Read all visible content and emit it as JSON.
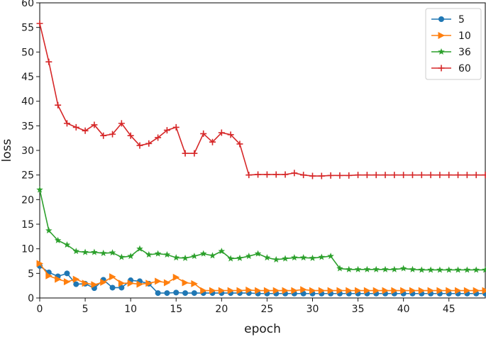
{
  "chart_data": {
    "type": "line",
    "title": "",
    "xlabel": "epoch",
    "ylabel": "loss",
    "xlim": [
      0,
      49
    ],
    "ylim": [
      0,
      60
    ],
    "xticks": [
      0,
      5,
      10,
      15,
      20,
      25,
      30,
      35,
      40,
      45
    ],
    "yticks": [
      0,
      5,
      10,
      15,
      20,
      25,
      30,
      35,
      40,
      45,
      50,
      55,
      60
    ],
    "grid": false,
    "legend_position": "top-right",
    "x": [
      0,
      1,
      2,
      3,
      4,
      5,
      6,
      7,
      8,
      9,
      10,
      11,
      12,
      13,
      14,
      15,
      16,
      17,
      18,
      19,
      20,
      21,
      22,
      23,
      24,
      25,
      26,
      27,
      28,
      29,
      30,
      31,
      32,
      33,
      34,
      35,
      36,
      37,
      38,
      39,
      40,
      41,
      42,
      43,
      44,
      45,
      46,
      47,
      48,
      49
    ],
    "series": [
      {
        "name": "5",
        "color": "#1f77b4",
        "marker": "circle",
        "values": [
          6.5,
          5.2,
          4.4,
          5.0,
          2.8,
          2.9,
          2.0,
          3.7,
          2.1,
          2.1,
          3.6,
          3.4,
          2.9,
          1.0,
          1.0,
          1.1,
          1.0,
          1.0,
          1.0,
          1.0,
          1.0,
          1.0,
          1.0,
          1.0,
          0.9,
          0.9,
          0.9,
          0.9,
          0.9,
          0.9,
          0.9,
          0.9,
          0.9,
          0.9,
          0.9,
          0.9,
          0.9,
          0.9,
          0.9,
          0.9,
          0.9,
          0.9,
          0.9,
          0.9,
          0.9,
          0.9,
          0.9,
          0.9,
          0.9,
          0.9
        ]
      },
      {
        "name": "10",
        "color": "#ff7f0e",
        "marker": "triangle-right",
        "values": [
          7.0,
          4.5,
          3.8,
          3.3,
          3.8,
          3.0,
          2.7,
          3.2,
          4.3,
          3.0,
          3.0,
          2.8,
          3.0,
          3.4,
          3.1,
          4.2,
          3.1,
          2.9,
          1.5,
          1.5,
          1.5,
          1.5,
          1.5,
          1.6,
          1.5,
          1.5,
          1.5,
          1.5,
          1.5,
          1.7,
          1.5,
          1.5,
          1.5,
          1.5,
          1.5,
          1.5,
          1.5,
          1.5,
          1.5,
          1.5,
          1.5,
          1.5,
          1.5,
          1.5,
          1.5,
          1.5,
          1.5,
          1.5,
          1.5,
          1.5
        ]
      },
      {
        "name": "36",
        "color": "#2ca02c",
        "marker": "star",
        "values": [
          22.0,
          13.7,
          11.7,
          10.8,
          9.5,
          9.3,
          9.3,
          9.1,
          9.2,
          8.3,
          8.5,
          10.0,
          8.8,
          9.0,
          8.8,
          8.2,
          8.1,
          8.5,
          9.0,
          8.6,
          9.5,
          8.0,
          8.1,
          8.5,
          9.0,
          8.2,
          7.8,
          8.0,
          8.2,
          8.2,
          8.1,
          8.3,
          8.5,
          6.0,
          5.8,
          5.8,
          5.8,
          5.8,
          5.8,
          5.8,
          6.0,
          5.8,
          5.7,
          5.7,
          5.7,
          5.7,
          5.7,
          5.7,
          5.7,
          5.7
        ]
      },
      {
        "name": "60",
        "color": "#d62728",
        "marker": "plus",
        "values": [
          55.8,
          48.0,
          39.2,
          35.5,
          34.7,
          34.0,
          35.2,
          33.0,
          33.3,
          35.5,
          33.0,
          31.0,
          31.4,
          32.6,
          34.1,
          34.7,
          29.4,
          29.4,
          33.4,
          31.7,
          33.6,
          33.2,
          31.3,
          25.0,
          25.1,
          25.1,
          25.1,
          25.1,
          25.4,
          25.0,
          24.8,
          24.8,
          24.9,
          24.9,
          24.9,
          25.0,
          25.0,
          25.0,
          25.0,
          25.0,
          25.0,
          25.0,
          25.0,
          25.0,
          25.0,
          25.0,
          25.0,
          25.0,
          25.0,
          25.0
        ]
      }
    ]
  }
}
